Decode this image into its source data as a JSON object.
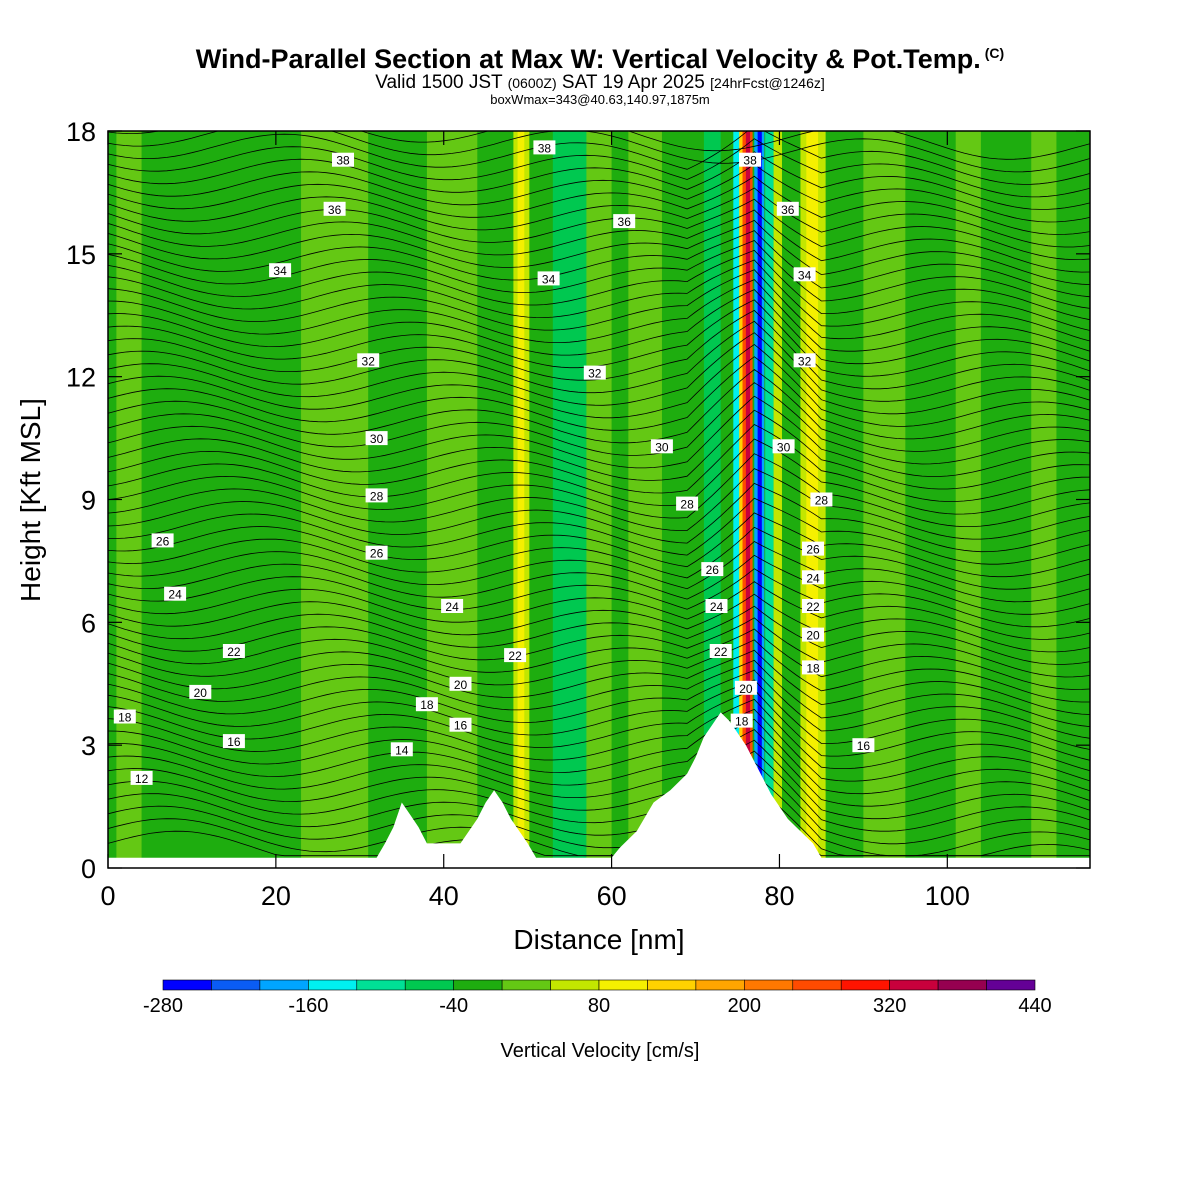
{
  "title": "Wind-Parallel Section at Max W: Vertical Velocity & Pot.Temp.",
  "title_mark": "(C)",
  "subtitle_parts": [
    "Valid 1500 JST ",
    "(0600Z)",
    " SAT 19 Apr 2025 ",
    "[24hrFcst@1246z]"
  ],
  "subtitle2": "boxWmax=343@40.63,140.97,1875m",
  "chart_data": {
    "type": "heatmap",
    "xlabel": "Distance [nm]",
    "ylabel": "Height [Kft MSL]",
    "xlim": [
      0,
      117
    ],
    "ylim": [
      0,
      18
    ],
    "x_ticks": [
      0,
      20,
      40,
      60,
      80,
      100
    ],
    "y_ticks": [
      0,
      3,
      6,
      9,
      12,
      15,
      18
    ],
    "colorbar": {
      "label": "Vertical Velocity [cm/s]",
      "levels": [
        -280,
        -240,
        -200,
        -160,
        -120,
        -80,
        -40,
        0,
        40,
        80,
        120,
        160,
        200,
        240,
        280,
        320,
        360,
        400,
        440
      ],
      "tick_labels": [
        "-280",
        "-160",
        "-40",
        "80",
        "200",
        "320",
        "440"
      ],
      "colors": [
        "#0000ff",
        "#0a5cf5",
        "#00a5ff",
        "#00f0f0",
        "#00e096",
        "#00c850",
        "#1ead0f",
        "#64c814",
        "#c3e600",
        "#f5f000",
        "#ffd200",
        "#ffa500",
        "#ff7800",
        "#ff4b00",
        "#ff1400",
        "#c8003c",
        "#960050",
        "#640096"
      ]
    },
    "terrain": [
      [
        0,
        0.25
      ],
      [
        32,
        0.25
      ],
      [
        33,
        0.6
      ],
      [
        34,
        1.0
      ],
      [
        35,
        1.6
      ],
      [
        36,
        1.3
      ],
      [
        37,
        1.0
      ],
      [
        38,
        0.6
      ],
      [
        40,
        0.6
      ],
      [
        42,
        0.6
      ],
      [
        43,
        0.9
      ],
      [
        44,
        1.2
      ],
      [
        45,
        1.6
      ],
      [
        46,
        1.9
      ],
      [
        47,
        1.6
      ],
      [
        48,
        1.2
      ],
      [
        49,
        0.9
      ],
      [
        50,
        0.6
      ],
      [
        51,
        0.25
      ],
      [
        60,
        0.25
      ],
      [
        61,
        0.5
      ],
      [
        63,
        0.9
      ],
      [
        65,
        1.6
      ],
      [
        67,
        1.9
      ],
      [
        69,
        2.3
      ],
      [
        70,
        2.7
      ],
      [
        71,
        3.2
      ],
      [
        72,
        3.5
      ],
      [
        73,
        3.8
      ],
      [
        74,
        3.6
      ],
      [
        75,
        3.3
      ],
      [
        76,
        3.0
      ],
      [
        77,
        2.6
      ],
      [
        78,
        2.2
      ],
      [
        79,
        1.8
      ],
      [
        80,
        1.5
      ],
      [
        81,
        1.2
      ],
      [
        82,
        1.0
      ],
      [
        84,
        0.6
      ],
      [
        85,
        0.25
      ],
      [
        117,
        0.25
      ]
    ],
    "wave_regions": [
      {
        "x": 49,
        "w": 40
      },
      {
        "x": 75.5,
        "w": 320
      },
      {
        "x": 77.5,
        "w": -280
      },
      {
        "x": 79,
        "w": 80
      },
      {
        "x": 84,
        "w": 120
      }
    ],
    "theta_isotherms": {
      "units": "C",
      "contour_labels": [
        {
          "x": 28,
          "y": 17.3,
          "t": "38"
        },
        {
          "x": 27,
          "y": 16.1,
          "t": "36"
        },
        {
          "x": 20.5,
          "y": 14.6,
          "t": "34"
        },
        {
          "x": 31,
          "y": 12.4,
          "t": "32"
        },
        {
          "x": 32,
          "y": 10.5,
          "t": "30"
        },
        {
          "x": 32,
          "y": 9.1,
          "t": "28"
        },
        {
          "x": 6.5,
          "y": 8.0,
          "t": "26"
        },
        {
          "x": 32,
          "y": 7.7,
          "t": "26"
        },
        {
          "x": 8,
          "y": 6.7,
          "t": "24"
        },
        {
          "x": 41,
          "y": 6.4,
          "t": "24"
        },
        {
          "x": 15,
          "y": 5.3,
          "t": "22"
        },
        {
          "x": 48.5,
          "y": 5.2,
          "t": "22"
        },
        {
          "x": 11,
          "y": 4.3,
          "t": "20"
        },
        {
          "x": 42,
          "y": 4.5,
          "t": "20"
        },
        {
          "x": 2,
          "y": 3.7,
          "t": "18"
        },
        {
          "x": 38,
          "y": 4.0,
          "t": "18"
        },
        {
          "x": 15,
          "y": 3.1,
          "t": "16"
        },
        {
          "x": 42,
          "y": 3.5,
          "t": "16"
        },
        {
          "x": 35,
          "y": 2.9,
          "t": "14"
        },
        {
          "x": 4,
          "y": 2.2,
          "t": "12"
        },
        {
          "x": 52,
          "y": 17.6,
          "t": "38"
        },
        {
          "x": 61.5,
          "y": 15.8,
          "t": "36"
        },
        {
          "x": 52.5,
          "y": 14.4,
          "t": "34"
        },
        {
          "x": 58,
          "y": 12.1,
          "t": "32"
        },
        {
          "x": 66,
          "y": 10.3,
          "t": "30"
        },
        {
          "x": 69,
          "y": 8.9,
          "t": "28"
        },
        {
          "x": 72,
          "y": 7.3,
          "t": "26"
        },
        {
          "x": 72.5,
          "y": 6.4,
          "t": "24"
        },
        {
          "x": 73,
          "y": 5.3,
          "t": "22"
        },
        {
          "x": 76,
          "y": 4.4,
          "t": "20"
        },
        {
          "x": 75.5,
          "y": 3.6,
          "t": "18"
        },
        {
          "x": 76.5,
          "y": 17.3,
          "t": "38"
        },
        {
          "x": 81,
          "y": 16.1,
          "t": "36"
        },
        {
          "x": 83,
          "y": 14.5,
          "t": "34"
        },
        {
          "x": 83,
          "y": 12.4,
          "t": "32"
        },
        {
          "x": 80.5,
          "y": 10.3,
          "t": "30"
        },
        {
          "x": 85,
          "y": 9.0,
          "t": "28"
        },
        {
          "x": 84,
          "y": 7.8,
          "t": "26"
        },
        {
          "x": 84,
          "y": 7.1,
          "t": "24"
        },
        {
          "x": 84,
          "y": 6.4,
          "t": "22"
        },
        {
          "x": 84,
          "y": 5.7,
          "t": "20"
        },
        {
          "x": 84,
          "y": 4.9,
          "t": "18"
        },
        {
          "x": 90,
          "y": 3.0,
          "t": "16"
        }
      ]
    }
  }
}
